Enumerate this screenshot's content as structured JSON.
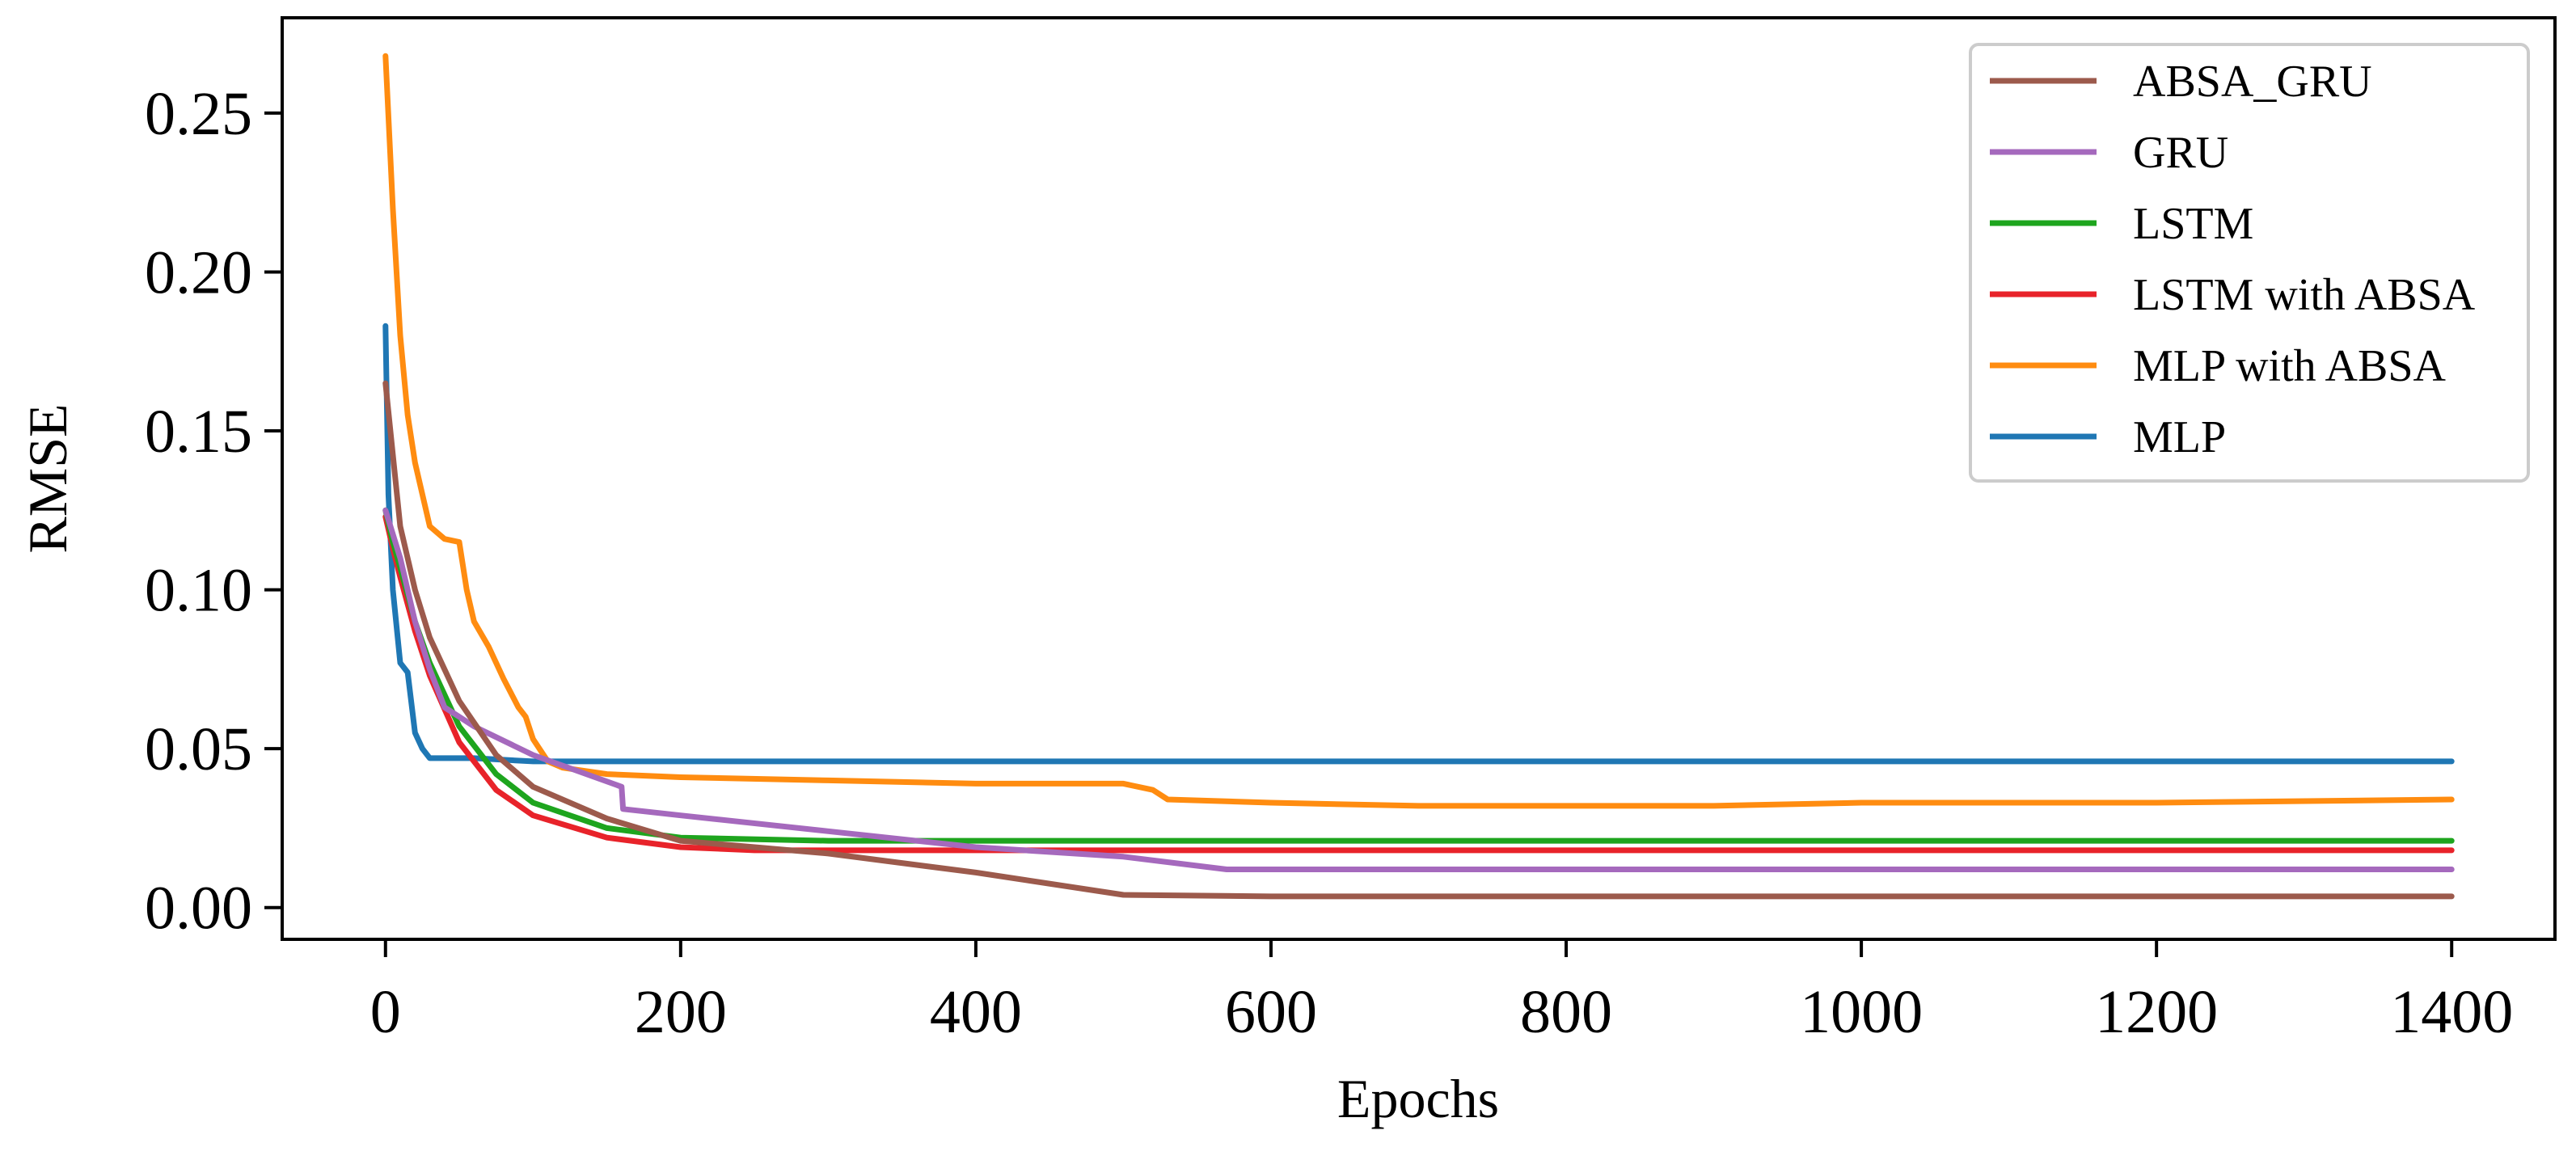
{
  "chart_data": {
    "type": "line",
    "title": "",
    "xlabel": "Epochs",
    "ylabel": "RMSE",
    "xlim": [
      -70,
      1470
    ],
    "ylim": [
      -0.01,
      0.28
    ],
    "xticks": [
      0,
      200,
      400,
      600,
      800,
      1000,
      1200,
      1400
    ],
    "xtick_labels": [
      "0",
      "200",
      "400",
      "600",
      "800",
      "1000",
      "1200",
      "1400"
    ],
    "yticks": [
      0.0,
      0.05,
      0.1,
      0.15,
      0.2,
      0.25
    ],
    "ytick_labels": [
      "0.00",
      "0.05",
      "0.10",
      "0.15",
      "0.20",
      "0.25"
    ],
    "grid": false,
    "legend_position": "top-right",
    "series": [
      {
        "name": "ABSA_GRU",
        "color": "#9c5a4c",
        "x": [
          0,
          10,
          20,
          30,
          50,
          75,
          100,
          150,
          200,
          300,
          400,
          500,
          600,
          700,
          800,
          1000,
          1200,
          1400
        ],
        "y": [
          0.165,
          0.12,
          0.1,
          0.085,
          0.065,
          0.048,
          0.038,
          0.028,
          0.021,
          0.017,
          0.011,
          0.004,
          0.0035,
          0.0035,
          0.0035,
          0.0035,
          0.0035,
          0.0035
        ]
      },
      {
        "name": "GRU",
        "color": "#a569bd",
        "x": [
          0,
          10,
          20,
          30,
          40,
          60,
          100,
          160,
          161,
          200,
          300,
          400,
          500,
          570,
          600,
          800,
          1000,
          1200,
          1400
        ],
        "y": [
          0.125,
          0.11,
          0.09,
          0.075,
          0.063,
          0.057,
          0.048,
          0.038,
          0.031,
          0.029,
          0.024,
          0.019,
          0.016,
          0.012,
          0.012,
          0.012,
          0.012,
          0.012,
          0.012
        ]
      },
      {
        "name": "LSTM",
        "color": "#1ea51e",
        "x": [
          0,
          5,
          10,
          20,
          30,
          50,
          75,
          100,
          150,
          200,
          300,
          400,
          600,
          800,
          1000,
          1200,
          1400
        ],
        "y": [
          0.125,
          0.115,
          0.107,
          0.09,
          0.077,
          0.057,
          0.042,
          0.033,
          0.025,
          0.022,
          0.021,
          0.021,
          0.021,
          0.021,
          0.021,
          0.021,
          0.021
        ]
      },
      {
        "name": "LSTM with ABSA",
        "color": "#e8232a",
        "x": [
          0,
          5,
          10,
          20,
          30,
          50,
          75,
          100,
          150,
          200,
          250,
          300,
          400,
          600,
          800,
          1000,
          1200,
          1400
        ],
        "y": [
          0.123,
          0.113,
          0.104,
          0.087,
          0.073,
          0.052,
          0.037,
          0.029,
          0.022,
          0.019,
          0.018,
          0.018,
          0.018,
          0.018,
          0.018,
          0.018,
          0.018,
          0.018
        ]
      },
      {
        "name": "MLP with ABSA",
        "color": "#ff8c10",
        "x": [
          0,
          5,
          10,
          15,
          20,
          30,
          40,
          50,
          55,
          60,
          70,
          80,
          90,
          95,
          100,
          110,
          120,
          150,
          200,
          300,
          400,
          500,
          520,
          530,
          600,
          700,
          800,
          900,
          1000,
          1200,
          1400
        ],
        "y": [
          0.268,
          0.22,
          0.18,
          0.155,
          0.14,
          0.12,
          0.116,
          0.115,
          0.1,
          0.09,
          0.082,
          0.072,
          0.063,
          0.06,
          0.053,
          0.046,
          0.044,
          0.042,
          0.041,
          0.04,
          0.039,
          0.039,
          0.037,
          0.034,
          0.033,
          0.032,
          0.032,
          0.032,
          0.033,
          0.033,
          0.034
        ]
      },
      {
        "name": "MLP",
        "color": "#1f77b4",
        "x": [
          0,
          2,
          5,
          10,
          15,
          20,
          25,
          30,
          35,
          40,
          60,
          100,
          200,
          400,
          600,
          800,
          1000,
          1200,
          1400
        ],
        "y": [
          0.183,
          0.13,
          0.1,
          0.077,
          0.074,
          0.055,
          0.05,
          0.047,
          0.047,
          0.047,
          0.047,
          0.046,
          0.046,
          0.046,
          0.046,
          0.046,
          0.046,
          0.046,
          0.046
        ]
      }
    ]
  }
}
